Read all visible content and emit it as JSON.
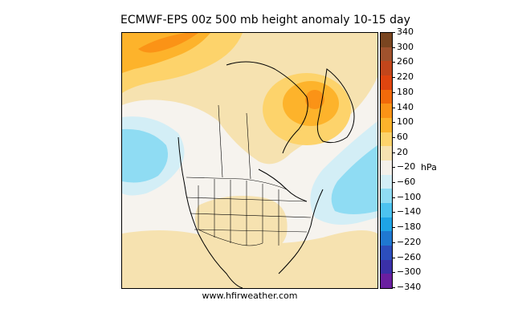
{
  "title": "ECMWF-EPS 00z 500 mb height anomaly 10-15 day",
  "footer": "www.hfirweather.com",
  "colorbar": {
    "unit": "hPa",
    "tick_labels": [
      "340",
      "300",
      "260",
      "220",
      "180",
      "140",
      "100",
      "60",
      "20",
      "−20",
      "−60",
      "−100",
      "−140",
      "−180",
      "−220",
      "−260",
      "−300",
      "−340"
    ],
    "colors": [
      "#7a4520",
      "#a0522d",
      "#c2461b",
      "#e0450f",
      "#f26a0a",
      "#fb9316",
      "#fdb32b",
      "#fdd36b",
      "#f6e2b0",
      "#f4f0ea",
      "#d3eef6",
      "#8fdcf3",
      "#4cc3f0",
      "#1ea4e6",
      "#1f78d1",
      "#2c4ebd",
      "#3a30a8",
      "#6a1fa0"
    ]
  },
  "map": {
    "background_color": "#f6f3ee",
    "anomalies": [
      {
        "name": "alaska-ridge",
        "level": "+60 to +140"
      },
      {
        "name": "baffin-ridge",
        "level": "+100 to +140"
      },
      {
        "name": "west-coast-trough",
        "level": "-20 to -60"
      },
      {
        "name": "atlantic-trough",
        "level": "-20 to -60"
      },
      {
        "name": "plains-ridge",
        "level": "+20 to +60"
      }
    ]
  }
}
